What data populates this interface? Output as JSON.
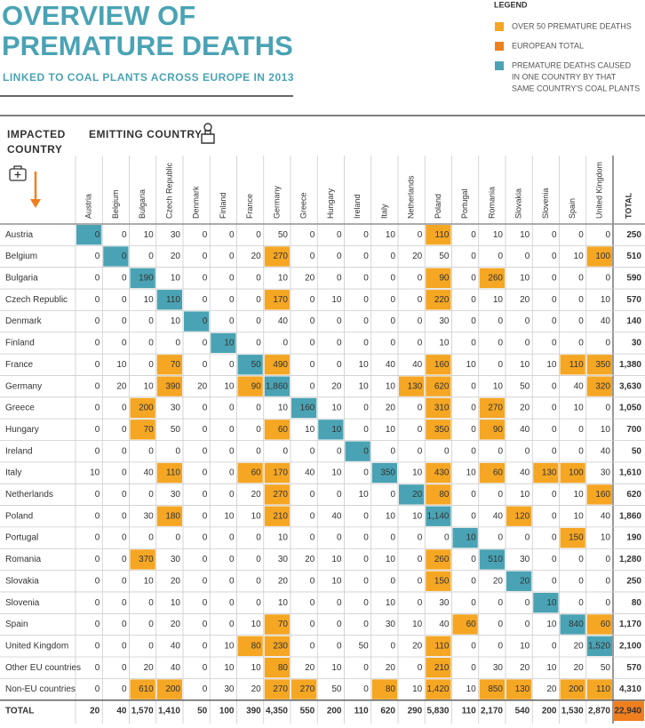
{
  "header": {
    "title_lines": [
      "OVERVIEW OF",
      "PREMATURE DEATHS"
    ],
    "subtitle": "LINKED TO COAL PLANTS ACROSS EUROPE IN 2013"
  },
  "legend": {
    "title": "LEGEND",
    "items": [
      {
        "lines": [
          "OVER 50 PREMATURE DEATHS"
        ],
        "color": "#f5a623",
        "threshold": 50
      },
      {
        "lines": [
          "EUROPEAN TOTAL"
        ],
        "color": "#f07f1e"
      },
      {
        "lines": [
          "PREMATURE DEATHS CAUSED",
          "IN ONE COUNTRY BY THAT",
          "SAME COUNTRY'S COAL PLANTS"
        ],
        "color": "#4aa3b4"
      }
    ]
  },
  "table": {
    "row_header": [
      "IMPACTED",
      "COUNTRY"
    ],
    "column_header": "EMITTING COUNTRY",
    "columns": [
      "Austria",
      "Belgium",
      "Bulgaria",
      "Czech Republic",
      "Denmark",
      "Finland",
      "France",
      "Germany",
      "Greece",
      "Hungary",
      "Ireland",
      "Italy",
      "Netherlands",
      "Poland",
      "Portugal",
      "Romania",
      "Slovakia",
      "Slovenia",
      "Spain",
      "United Kingdom",
      "TOTAL"
    ],
    "rows": [
      {
        "label": "Austria",
        "cells": [
          "0",
          "0",
          "10",
          "30",
          "0",
          "0",
          "0",
          "50",
          "0",
          "0",
          "0",
          "10",
          "0",
          "110",
          "0",
          "10",
          "10",
          "0",
          "0",
          "0"
        ],
        "total": "250"
      },
      {
        "label": "Belgium",
        "cells": [
          "0",
          "0",
          "0",
          "20",
          "0",
          "0",
          "20",
          "270",
          "0",
          "0",
          "0",
          "0",
          "20",
          "50",
          "0",
          "0",
          "0",
          "0",
          "10",
          "100"
        ],
        "total": "510"
      },
      {
        "label": "Bulgaria",
        "cells": [
          "0",
          "0",
          "190",
          "10",
          "0",
          "0",
          "0",
          "10",
          "20",
          "0",
          "0",
          "0",
          "0",
          "90",
          "0",
          "260",
          "10",
          "0",
          "0",
          "0"
        ],
        "total": "590"
      },
      {
        "label": "Czech Republic",
        "cells": [
          "0",
          "0",
          "10",
          "110",
          "0",
          "0",
          "0",
          "170",
          "0",
          "10",
          "0",
          "0",
          "0",
          "220",
          "0",
          "10",
          "20",
          "0",
          "0",
          "10"
        ],
        "total": "570"
      },
      {
        "label": "Denmark",
        "cells": [
          "0",
          "0",
          "0",
          "10",
          "0",
          "0",
          "0",
          "40",
          "0",
          "0",
          "0",
          "0",
          "0",
          "30",
          "0",
          "0",
          "0",
          "0",
          "0",
          "40"
        ],
        "total": "140"
      },
      {
        "label": "Finland",
        "cells": [
          "0",
          "0",
          "0",
          "0",
          "0",
          "10",
          "0",
          "0",
          "0",
          "0",
          "0",
          "0",
          "0",
          "10",
          "0",
          "0",
          "0",
          "0",
          "0",
          "0"
        ],
        "total": "30"
      },
      {
        "label": "France",
        "cells": [
          "0",
          "10",
          "0",
          "70",
          "0",
          "0",
          "50",
          "490",
          "0",
          "0",
          "10",
          "40",
          "40",
          "160",
          "10",
          "0",
          "10",
          "10",
          "110",
          "350"
        ],
        "total": "1,380"
      },
      {
        "label": "Germany",
        "cells": [
          "0",
          "20",
          "10",
          "390",
          "20",
          "10",
          "90",
          "1,860",
          "0",
          "20",
          "10",
          "10",
          "130",
          "620",
          "0",
          "10",
          "50",
          "0",
          "40",
          "320"
        ],
        "total": "3,630"
      },
      {
        "label": "Greece",
        "cells": [
          "0",
          "0",
          "200",
          "30",
          "0",
          "0",
          "0",
          "10",
          "160",
          "10",
          "0",
          "20",
          "0",
          "310",
          "0",
          "270",
          "20",
          "0",
          "10",
          "0"
        ],
        "total": "1,050"
      },
      {
        "label": "Hungary",
        "cells": [
          "0",
          "0",
          "70",
          "50",
          "0",
          "0",
          "0",
          "60",
          "10",
          "10",
          "0",
          "10",
          "0",
          "350",
          "0",
          "90",
          "40",
          "0",
          "0",
          "10"
        ],
        "total": "700"
      },
      {
        "label": "Ireland",
        "cells": [
          "0",
          "0",
          "0",
          "0",
          "0",
          "0",
          "0",
          "0",
          "0",
          "0",
          "0",
          "0",
          "0",
          "0",
          "0",
          "0",
          "0",
          "0",
          "0",
          "40"
        ],
        "total": "50"
      },
      {
        "label": "Italy",
        "cells": [
          "10",
          "0",
          "40",
          "110",
          "0",
          "0",
          "60",
          "170",
          "40",
          "10",
          "0",
          "350",
          "10",
          "430",
          "10",
          "60",
          "40",
          "130",
          "100",
          "30"
        ],
        "total": "1,610"
      },
      {
        "label": "Netherlands",
        "cells": [
          "0",
          "0",
          "0",
          "30",
          "0",
          "0",
          "20",
          "270",
          "0",
          "0",
          "10",
          "0",
          "20",
          "80",
          "0",
          "0",
          "10",
          "0",
          "10",
          "160"
        ],
        "total": "620"
      },
      {
        "label": "Poland",
        "cells": [
          "0",
          "0",
          "30",
          "180",
          "0",
          "10",
          "10",
          "210",
          "0",
          "40",
          "0",
          "10",
          "10",
          "1,140",
          "0",
          "40",
          "120",
          "0",
          "10",
          "40"
        ],
        "total": "1,860"
      },
      {
        "label": "Portugal",
        "cells": [
          "0",
          "0",
          "0",
          "0",
          "0",
          "0",
          "0",
          "10",
          "0",
          "0",
          "0",
          "0",
          "0",
          "0",
          "10",
          "0",
          "0",
          "0",
          "150",
          "10"
        ],
        "total": "190"
      },
      {
        "label": "Romania",
        "cells": [
          "0",
          "0",
          "370",
          "30",
          "0",
          "0",
          "0",
          "30",
          "20",
          "10",
          "0",
          "10",
          "0",
          "260",
          "0",
          "510",
          "30",
          "0",
          "0",
          "0"
        ],
        "total": "1,280"
      },
      {
        "label": "Slovakia",
        "cells": [
          "0",
          "0",
          "10",
          "20",
          "0",
          "0",
          "0",
          "20",
          "0",
          "10",
          "0",
          "0",
          "0",
          "150",
          "0",
          "20",
          "20",
          "0",
          "0",
          "0"
        ],
        "total": "250"
      },
      {
        "label": "Slovenia",
        "cells": [
          "0",
          "0",
          "0",
          "10",
          "0",
          "0",
          "0",
          "10",
          "0",
          "0",
          "0",
          "10",
          "0",
          "30",
          "0",
          "0",
          "0",
          "10",
          "0",
          "0"
        ],
        "total": "80"
      },
      {
        "label": "Spain",
        "cells": [
          "0",
          "0",
          "0",
          "20",
          "0",
          "0",
          "10",
          "70",
          "0",
          "0",
          "0",
          "30",
          "10",
          "40",
          "60",
          "0",
          "0",
          "10",
          "840",
          "60"
        ],
        "total": "1,170"
      },
      {
        "label": "United Kingdom",
        "cells": [
          "0",
          "0",
          "0",
          "40",
          "0",
          "10",
          "80",
          "230",
          "0",
          "0",
          "50",
          "0",
          "20",
          "110",
          "0",
          "0",
          "10",
          "0",
          "20",
          "1,520"
        ],
        "total": "2,100"
      },
      {
        "label": "Other EU countries",
        "cells": [
          "0",
          "0",
          "20",
          "40",
          "0",
          "10",
          "10",
          "80",
          "20",
          "10",
          "0",
          "20",
          "0",
          "210",
          "0",
          "30",
          "20",
          "10",
          "20",
          "50"
        ],
        "total": "570"
      },
      {
        "label": "Non-EU countries",
        "cells": [
          "0",
          "0",
          "610",
          "200",
          "0",
          "30",
          "20",
          "270",
          "270",
          "50",
          "0",
          "80",
          "10",
          "1,420",
          "10",
          "850",
          "130",
          "20",
          "200",
          "110"
        ],
        "total": "4,310"
      }
    ],
    "total_row": {
      "label": "TOTAL",
      "cells": [
        "20",
        "40",
        "1,570",
        "1,410",
        "50",
        "100",
        "390",
        "4,350",
        "550",
        "200",
        "110",
        "620",
        "290",
        "5,830",
        "110",
        "2,170",
        "540",
        "200",
        "1,530",
        "2,870"
      ],
      "total": "22,940"
    }
  }
}
